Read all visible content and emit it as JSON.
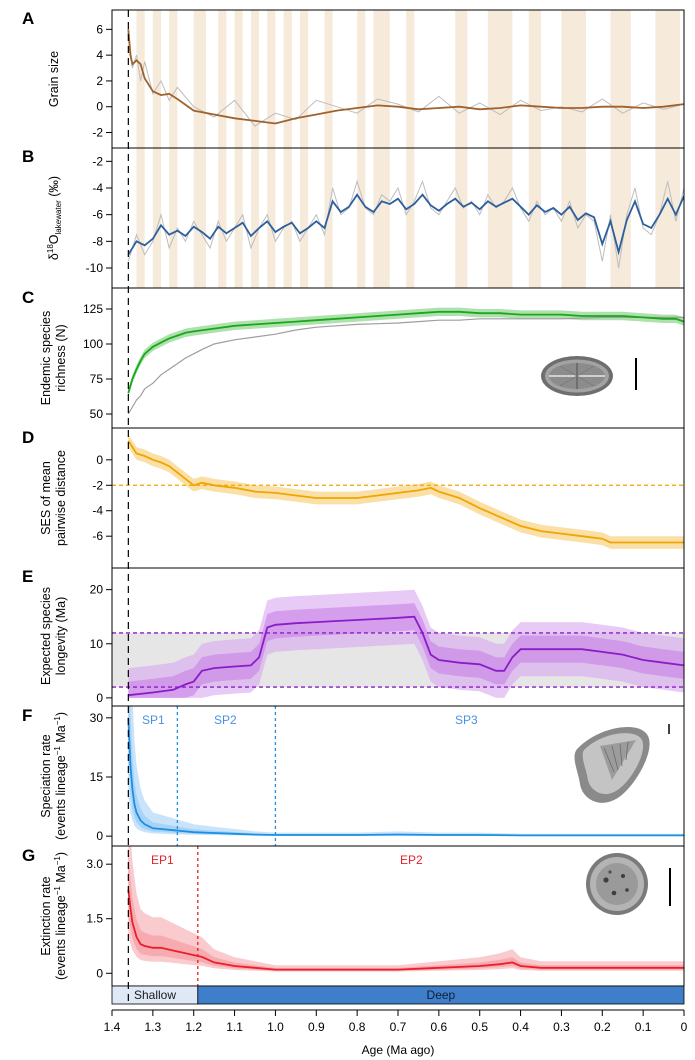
{
  "figure": {
    "x_axis": {
      "label": "Age (Ma ago)",
      "ticks": [
        "1.4",
        "1.3",
        "1.2",
        "1.1",
        "1.0",
        "0.9",
        "0.8",
        "0.7",
        "0.6",
        "0.5",
        "0.4",
        "0.3",
        "0.2",
        "0.1",
        "0"
      ]
    },
    "marker_age": 1.36,
    "colors": {
      "grain": "#a0622d",
      "d18o": "#2c5f9e",
      "richness": "#1aa81a",
      "ses": "#f0a500",
      "longevity": "#8b1cc9",
      "speciation": "#1a8fe3",
      "extinction": "#e8202a",
      "band": "#f6eadb",
      "env_shallow": "#dfe9f6",
      "env_deep": "#3f7fc9"
    }
  },
  "chart_data": [
    {
      "panel": "A",
      "type": "line",
      "ylabel": "Grain size",
      "yticks": [
        "6",
        "4",
        "2",
        "0",
        "-2"
      ],
      "ylim": [
        -3.2,
        7.5
      ],
      "series": [
        {
          "style": "raw",
          "x": [
            1.36,
            1.35,
            1.34,
            1.33,
            1.32,
            1.3,
            1.28,
            1.26,
            1.24,
            1.2,
            1.15,
            1.1,
            1.05,
            1.0,
            0.95,
            0.9,
            0.85,
            0.8,
            0.75,
            0.7,
            0.65,
            0.6,
            0.55,
            0.5,
            0.45,
            0.4,
            0.35,
            0.3,
            0.25,
            0.2,
            0.15,
            0.1,
            0.05,
            0.0
          ],
          "y": [
            6.2,
            3.0,
            4.0,
            2.0,
            3.5,
            1.0,
            2.0,
            0.5,
            1.5,
            0.0,
            -0.8,
            0.5,
            -1.5,
            -0.5,
            -1.0,
            0.5,
            0.0,
            -0.5,
            0.6,
            0.2,
            -0.4,
            0.8,
            -0.5,
            0.3,
            -0.6,
            0.5,
            -0.3,
            0.0,
            -0.4,
            0.6,
            -0.5,
            0.3,
            -0.2,
            0.2
          ]
        },
        {
          "style": "smooth",
          "x": [
            1.36,
            1.355,
            1.35,
            1.34,
            1.33,
            1.32,
            1.3,
            1.28,
            1.26,
            1.24,
            1.2,
            1.15,
            1.1,
            1.05,
            1.0,
            0.95,
            0.9,
            0.85,
            0.8,
            0.75,
            0.7,
            0.65,
            0.6,
            0.55,
            0.5,
            0.45,
            0.4,
            0.35,
            0.3,
            0.25,
            0.2,
            0.15,
            0.1,
            0.05,
            0.0
          ],
          "y": [
            6.0,
            4.0,
            3.3,
            3.6,
            3.3,
            2.2,
            1.2,
            0.9,
            1.0,
            0.6,
            -0.3,
            -0.6,
            -0.9,
            -1.1,
            -1.3,
            -0.9,
            -0.6,
            -0.3,
            -0.1,
            0.1,
            0.0,
            -0.2,
            -0.1,
            0.0,
            -0.2,
            -0.1,
            0.1,
            0.0,
            -0.1,
            -0.1,
            0.0,
            0.0,
            -0.1,
            0.0,
            0.2
          ]
        }
      ]
    },
    {
      "panel": "B",
      "type": "line",
      "ylabel_main": "δ",
      "ylabel_sup": "18",
      "ylabel_o": "O",
      "ylabel_sub": "lakewater",
      "ylabel_unit": " (‰)",
      "yticks": [
        "-2",
        "-4",
        "-6",
        "-8",
        "-10"
      ],
      "ylim": [
        -11.5,
        -1.0
      ],
      "series": [
        {
          "style": "raw",
          "x": [
            1.36,
            1.34,
            1.32,
            1.3,
            1.28,
            1.26,
            1.24,
            1.22,
            1.2,
            1.18,
            1.16,
            1.14,
            1.12,
            1.1,
            1.08,
            1.06,
            1.04,
            1.02,
            1.0,
            0.98,
            0.96,
            0.94,
            0.92,
            0.9,
            0.88,
            0.86,
            0.84,
            0.82,
            0.8,
            0.78,
            0.76,
            0.74,
            0.72,
            0.7,
            0.68,
            0.66,
            0.64,
            0.62,
            0.6,
            0.58,
            0.56,
            0.54,
            0.52,
            0.5,
            0.48,
            0.46,
            0.44,
            0.42,
            0.4,
            0.38,
            0.36,
            0.34,
            0.32,
            0.3,
            0.28,
            0.26,
            0.24,
            0.22,
            0.2,
            0.18,
            0.16,
            0.14,
            0.12,
            0.1,
            0.08,
            0.06,
            0.04,
            0.02,
            0.0
          ],
          "y": [
            -9.5,
            -7.5,
            -9.0,
            -8.0,
            -6.0,
            -8.5,
            -7.0,
            -8.0,
            -6.5,
            -7.5,
            -8.5,
            -6.5,
            -8.0,
            -7.0,
            -6.0,
            -8.5,
            -7.0,
            -6.0,
            -8.0,
            -7.0,
            -6.5,
            -8.0,
            -7.0,
            -6.0,
            -7.5,
            -4.0,
            -6.0,
            -5.5,
            -3.5,
            -5.5,
            -6.0,
            -4.5,
            -5.0,
            -4.0,
            -6.0,
            -5.0,
            -3.5,
            -5.5,
            -6.0,
            -5.0,
            -4.0,
            -5.5,
            -5.0,
            -6.0,
            -4.5,
            -5.5,
            -5.0,
            -4.0,
            -5.5,
            -6.5,
            -5.0,
            -6.0,
            -5.5,
            -6.5,
            -5.0,
            -7.0,
            -6.0,
            -6.5,
            -9.5,
            -6.0,
            -10.0,
            -6.0,
            -4.0,
            -7.0,
            -7.5,
            -6.0,
            -3.5,
            -6.5,
            -4.0
          ]
        },
        {
          "style": "smooth",
          "x": [
            1.36,
            1.34,
            1.32,
            1.3,
            1.28,
            1.26,
            1.24,
            1.22,
            1.2,
            1.18,
            1.16,
            1.14,
            1.12,
            1.1,
            1.08,
            1.06,
            1.04,
            1.02,
            1.0,
            0.98,
            0.96,
            0.94,
            0.92,
            0.9,
            0.88,
            0.86,
            0.84,
            0.82,
            0.8,
            0.78,
            0.76,
            0.74,
            0.72,
            0.7,
            0.68,
            0.66,
            0.64,
            0.62,
            0.6,
            0.58,
            0.56,
            0.54,
            0.52,
            0.5,
            0.48,
            0.46,
            0.44,
            0.42,
            0.4,
            0.38,
            0.36,
            0.34,
            0.32,
            0.3,
            0.28,
            0.26,
            0.24,
            0.22,
            0.2,
            0.18,
            0.16,
            0.14,
            0.12,
            0.1,
            0.08,
            0.06,
            0.04,
            0.02,
            0.0
          ],
          "y": [
            -9.0,
            -8.0,
            -8.3,
            -7.8,
            -6.8,
            -7.5,
            -7.2,
            -7.6,
            -6.9,
            -7.3,
            -7.8,
            -6.9,
            -7.4,
            -7.0,
            -6.6,
            -7.6,
            -7.0,
            -6.5,
            -7.3,
            -6.9,
            -6.6,
            -7.4,
            -7.0,
            -6.5,
            -7.0,
            -5.0,
            -5.8,
            -5.4,
            -4.5,
            -5.4,
            -5.8,
            -5.0,
            -5.2,
            -4.8,
            -5.6,
            -5.2,
            -4.5,
            -5.3,
            -5.7,
            -5.2,
            -4.8,
            -5.4,
            -5.1,
            -5.6,
            -5.0,
            -5.4,
            -5.1,
            -4.8,
            -5.4,
            -6.0,
            -5.3,
            -5.8,
            -5.5,
            -6.0,
            -5.4,
            -6.4,
            -5.9,
            -6.2,
            -8.2,
            -6.5,
            -8.8,
            -6.4,
            -5.0,
            -6.7,
            -7.0,
            -6.0,
            -4.8,
            -6.0,
            -4.6
          ]
        }
      ]
    },
    {
      "panel": "C",
      "type": "area",
      "ylabel_line1": "Endemic species",
      "ylabel_line2": "richness (N)",
      "yticks": [
        "125",
        "100",
        "75",
        "50"
      ],
      "ylim": [
        40,
        140
      ],
      "series": [
        {
          "style": "mean",
          "x": [
            1.36,
            1.35,
            1.34,
            1.33,
            1.32,
            1.3,
            1.28,
            1.26,
            1.24,
            1.22,
            1.2,
            1.15,
            1.1,
            1.05,
            1.0,
            0.95,
            0.9,
            0.85,
            0.8,
            0.75,
            0.7,
            0.65,
            0.6,
            0.55,
            0.5,
            0.45,
            0.4,
            0.35,
            0.3,
            0.25,
            0.2,
            0.15,
            0.1,
            0.05,
            0.02,
            0.0
          ],
          "y": [
            65,
            75,
            82,
            88,
            93,
            98,
            101,
            104,
            106,
            108,
            109,
            111,
            113,
            114,
            115,
            116,
            117,
            118,
            119,
            120,
            121,
            122,
            123,
            123,
            122,
            122,
            121,
            121,
            121,
            120,
            120,
            120,
            119,
            118,
            118,
            116
          ],
          "band": 3
        },
        {
          "style": "observed",
          "x": [
            1.36,
            1.35,
            1.34,
            1.33,
            1.32,
            1.3,
            1.28,
            1.26,
            1.24,
            1.22,
            1.2,
            1.18,
            1.15,
            1.1,
            1.05,
            1.0,
            0.95,
            0.9,
            0.85,
            0.8,
            0.7,
            0.65,
            0.6,
            0.55,
            0.5,
            0.4,
            0.3,
            0.2,
            0.1,
            0.0
          ],
          "y": [
            50,
            55,
            60,
            63,
            68,
            72,
            78,
            82,
            86,
            90,
            93,
            96,
            100,
            103,
            105,
            107,
            110,
            112,
            113,
            114,
            115,
            116,
            117,
            117,
            118,
            118,
            118,
            119,
            119,
            119
          ]
        }
      ]
    },
    {
      "panel": "D",
      "type": "area",
      "ylabel_line1": "SES of mean",
      "ylabel_line2": "pairwise distance",
      "yticks": [
        "0",
        "-2",
        "-4",
        "-6"
      ],
      "ylim": [
        -8.5,
        2.5
      ],
      "reference_line": -2,
      "series": [
        {
          "style": "mean",
          "x": [
            1.36,
            1.35,
            1.34,
            1.32,
            1.3,
            1.28,
            1.26,
            1.24,
            1.22,
            1.2,
            1.18,
            1.15,
            1.1,
            1.05,
            1.0,
            0.95,
            0.9,
            0.85,
            0.8,
            0.75,
            0.7,
            0.65,
            0.62,
            0.6,
            0.55,
            0.5,
            0.45,
            0.4,
            0.35,
            0.3,
            0.25,
            0.2,
            0.18,
            0.15,
            0.1,
            0.05,
            0.0
          ],
          "y": [
            1.5,
            1.0,
            0.5,
            0.3,
            0.0,
            -0.2,
            -0.5,
            -1.0,
            -1.5,
            -2.0,
            -1.8,
            -2.0,
            -2.2,
            -2.5,
            -2.6,
            -2.8,
            -3.0,
            -3.0,
            -3.0,
            -2.8,
            -2.6,
            -2.4,
            -2.2,
            -2.5,
            -3.0,
            -3.8,
            -4.5,
            -5.2,
            -5.6,
            -5.8,
            -6.0,
            -6.2,
            -6.5,
            -6.5,
            -6.5,
            -6.5,
            -6.5
          ],
          "band": 0.5
        }
      ]
    },
    {
      "panel": "E",
      "type": "area",
      "ylabel_line1": "Expected species",
      "ylabel_line2": "longevity (Ma)",
      "yticks": [
        "20",
        "10",
        "0"
      ],
      "ylim": [
        -1.5,
        24
      ],
      "reference_lines": [
        12,
        2
      ],
      "series": [
        {
          "style": "mean",
          "x": [
            1.36,
            1.3,
            1.25,
            1.22,
            1.2,
            1.18,
            1.15,
            1.1,
            1.06,
            1.04,
            1.02,
            1.0,
            0.95,
            0.9,
            0.85,
            0.8,
            0.75,
            0.7,
            0.66,
            0.64,
            0.62,
            0.6,
            0.55,
            0.5,
            0.46,
            0.44,
            0.42,
            0.4,
            0.35,
            0.3,
            0.25,
            0.2,
            0.15,
            0.1,
            0.05,
            0.0
          ],
          "y": [
            0.5,
            1.0,
            1.5,
            2.5,
            3.0,
            5.0,
            5.5,
            5.8,
            6.0,
            7.5,
            13.0,
            13.5,
            13.8,
            14.0,
            14.2,
            14.4,
            14.6,
            14.8,
            15.0,
            12.0,
            8.0,
            7.0,
            6.5,
            6.2,
            5.0,
            5.0,
            7.5,
            9.0,
            9.0,
            9.0,
            9.0,
            8.5,
            8.0,
            7.0,
            6.5,
            6.0
          ],
          "band_inner": 2.5,
          "band_outer": 5
        }
      ]
    },
    {
      "panel": "F",
      "type": "area",
      "ylabel_line1": "Speciation rate",
      "ylabel_rate_a": "(events lineage",
      "ylabel_rate_b": " Ma",
      "ylabel_rate_c": ")",
      "yticks": [
        "30",
        "15",
        "0"
      ],
      "ylim": [
        -2.5,
        33
      ],
      "series": [
        {
          "style": "mean",
          "x": [
            1.36,
            1.355,
            1.35,
            1.345,
            1.34,
            1.33,
            1.32,
            1.3,
            1.28,
            1.25,
            1.22,
            1.2,
            1.15,
            1.1,
            1.05,
            1.0,
            0.9,
            0.8,
            0.7,
            0.6,
            0.5,
            0.4,
            0.3,
            0.2,
            0.1,
            0.0
          ],
          "y": [
            30,
            18,
            12,
            8,
            6,
            4,
            3,
            2,
            1.8,
            1.5,
            1.2,
            1.0,
            0.8,
            0.6,
            0.4,
            0.3,
            0.3,
            0.3,
            0.4,
            0.3,
            0.3,
            0.2,
            0.2,
            0.2,
            0.2,
            0.2
          ],
          "band_scale": 3
        }
      ],
      "phases": [
        {
          "label": "SP1"
        },
        {
          "label": "SP2"
        },
        {
          "label": "SP3"
        }
      ],
      "phase_boundaries": [
        1.24,
        1.0
      ]
    },
    {
      "panel": "G",
      "type": "area",
      "ylabel_line1": "Extinction rate",
      "ylabel_rate_a": "(events lineage",
      "ylabel_rate_b": " Ma",
      "ylabel_rate_c": ")",
      "yticks": [
        "3.0",
        "1.5",
        "0"
      ],
      "ylim": [
        -0.35,
        3.5
      ],
      "series": [
        {
          "style": "mean",
          "x": [
            1.36,
            1.355,
            1.35,
            1.34,
            1.33,
            1.32,
            1.3,
            1.28,
            1.26,
            1.24,
            1.22,
            1.2,
            1.18,
            1.15,
            1.1,
            1.05,
            1.0,
            0.9,
            0.8,
            0.7,
            0.6,
            0.5,
            0.45,
            0.42,
            0.4,
            0.35,
            0.3,
            0.25,
            0.2,
            0.15,
            0.1,
            0.05,
            0.0
          ],
          "y": [
            2.3,
            1.8,
            1.4,
            1.0,
            0.8,
            0.75,
            0.7,
            0.7,
            0.65,
            0.6,
            0.55,
            0.5,
            0.45,
            0.3,
            0.2,
            0.15,
            0.1,
            0.1,
            0.1,
            0.1,
            0.15,
            0.2,
            0.25,
            0.3,
            0.2,
            0.15,
            0.15,
            0.15,
            0.15,
            0.15,
            0.15,
            0.15,
            0.15
          ],
          "band_scale": 2.2
        }
      ],
      "phases": [
        {
          "label": "EP1"
        },
        {
          "label": "EP2"
        }
      ],
      "phase_boundaries": [
        1.19
      ],
      "environment": [
        {
          "label": "Shallow",
          "from": 1.4,
          "to": 1.19
        },
        {
          "label": "Deep",
          "from": 1.19,
          "to": 0.0
        }
      ]
    }
  ],
  "shaded_intervals": [
    [
      1.34,
      1.32
    ],
    [
      1.3,
      1.28
    ],
    [
      1.26,
      1.24
    ],
    [
      1.2,
      1.17
    ],
    [
      1.14,
      1.12
    ],
    [
      1.1,
      1.08
    ],
    [
      1.06,
      1.04
    ],
    [
      1.02,
      1.0
    ],
    [
      0.98,
      0.96
    ],
    [
      0.94,
      0.92
    ],
    [
      0.88,
      0.86
    ],
    [
      0.8,
      0.78
    ],
    [
      0.76,
      0.72
    ],
    [
      0.68,
      0.66
    ],
    [
      0.56,
      0.53
    ],
    [
      0.48,
      0.42
    ],
    [
      0.38,
      0.35
    ],
    [
      0.3,
      0.24
    ],
    [
      0.18,
      0.13
    ],
    [
      0.07,
      0.01
    ]
  ]
}
